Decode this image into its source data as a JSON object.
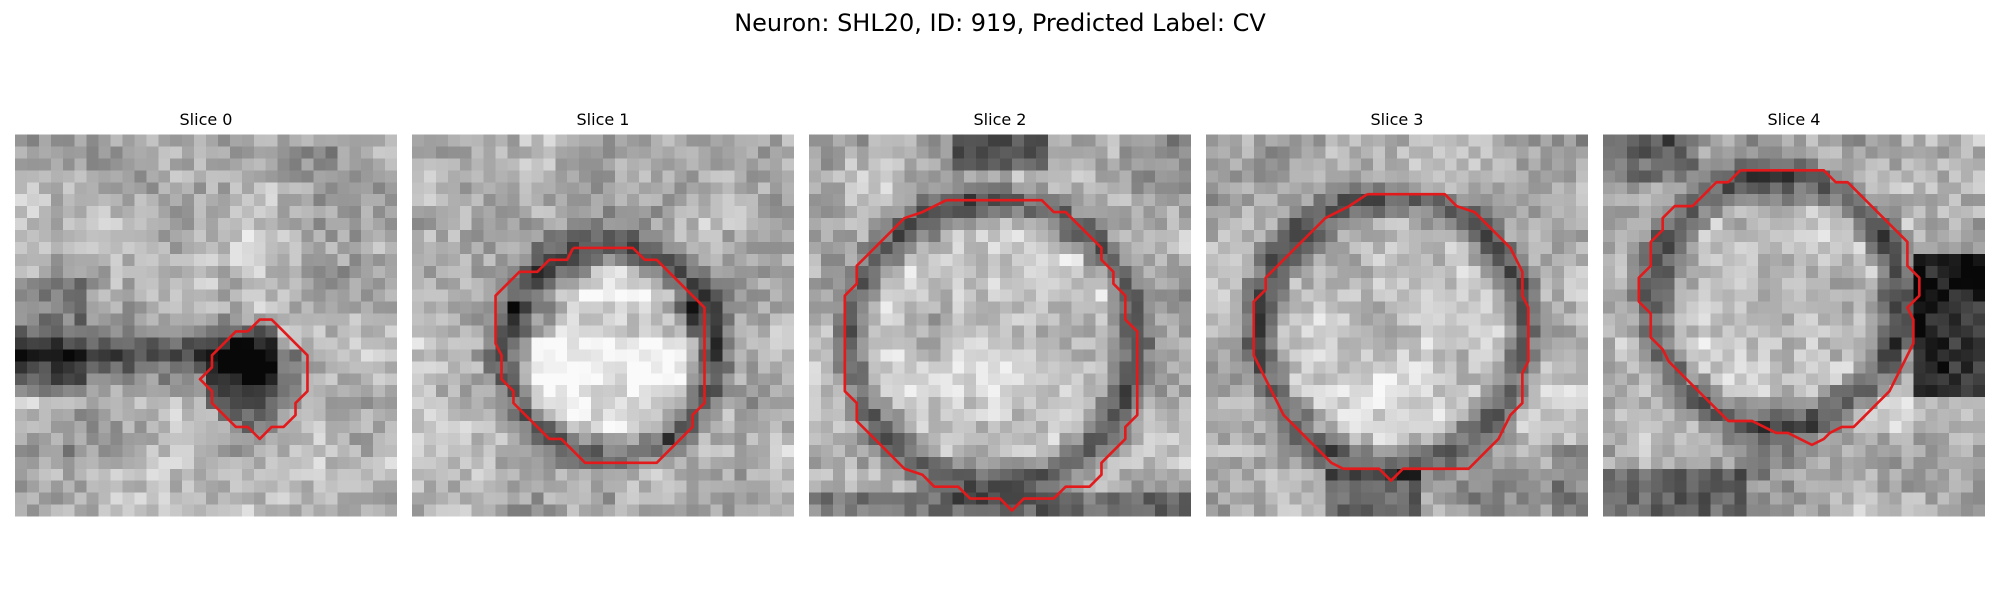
{
  "figure": {
    "title": "Neuron: SHL20, ID: 919, Predicted Label: CV"
  },
  "panels": [
    {
      "title": "Slice 0",
      "image": "grayscale-em-patch",
      "contour_color": "#e31a1c",
      "structure": "small-dark-blob"
    },
    {
      "title": "Slice 1",
      "image": "grayscale-em-patch",
      "contour_color": "#e31a1c",
      "structure": "ring-bright-core"
    },
    {
      "title": "Slice 2",
      "image": "grayscale-em-patch",
      "contour_color": "#e31a1c",
      "structure": "large-ring"
    },
    {
      "title": "Slice 3",
      "image": "grayscale-em-patch",
      "contour_color": "#e31a1c",
      "structure": "large-ring"
    },
    {
      "title": "Slice 4",
      "image": "grayscale-em-patch",
      "contour_color": "#e31a1c",
      "structure": "ring-bright-core"
    }
  ]
}
